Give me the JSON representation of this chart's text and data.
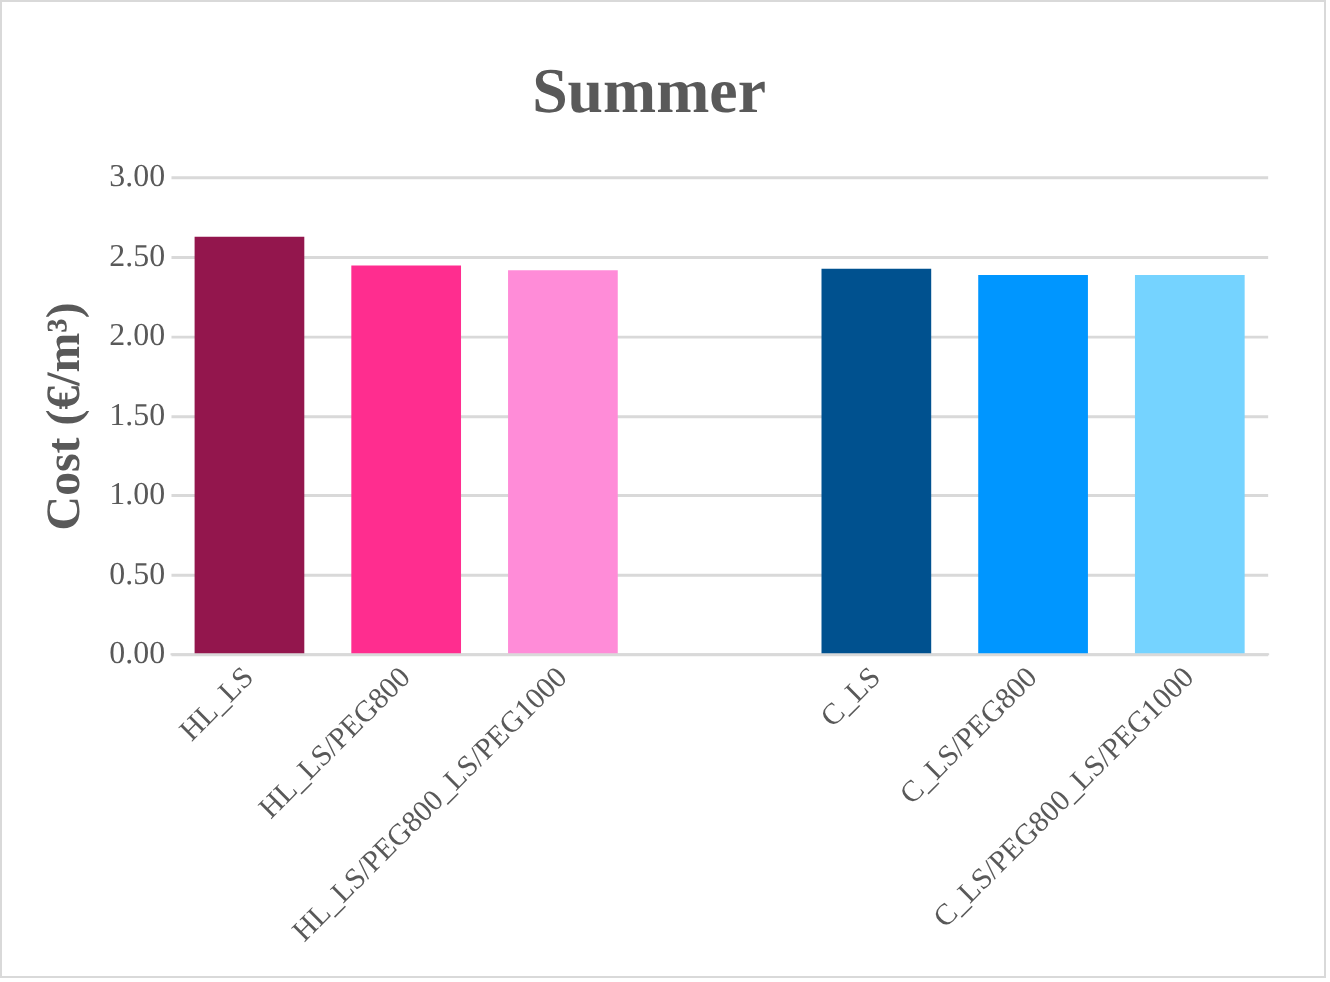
{
  "chart_data": {
    "type": "bar",
    "title": "Summer",
    "ylabel": "Cost (€/m³)",
    "categories": [
      "HL_LS",
      "HL_LS/PEG800",
      "HL_LS/PEG800_LS/PEG1000",
      null,
      "C_LS",
      "C_LS/PEG800",
      "C_LS/PEG800_LS/PEG1000"
    ],
    "values": [
      2.63,
      2.45,
      2.42,
      null,
      2.43,
      2.39,
      2.39
    ],
    "colors": [
      "#93164d",
      "#ff2d8f",
      "#ff8cd8",
      null,
      "#00518f",
      "#0096ff",
      "#75d3ff"
    ],
    "ylim": [
      0,
      3
    ],
    "yticks": [
      {
        "value": 0,
        "label": "0.00"
      },
      {
        "value": 0.5,
        "label": "0.50"
      },
      {
        "value": 1,
        "label": "1.00"
      },
      {
        "value": 1.5,
        "label": "1.50"
      },
      {
        "value": 2,
        "label": "2.00"
      },
      {
        "value": 2.5,
        "label": "2.50"
      },
      {
        "value": 3,
        "label": "3.00"
      }
    ],
    "grid": "y"
  }
}
